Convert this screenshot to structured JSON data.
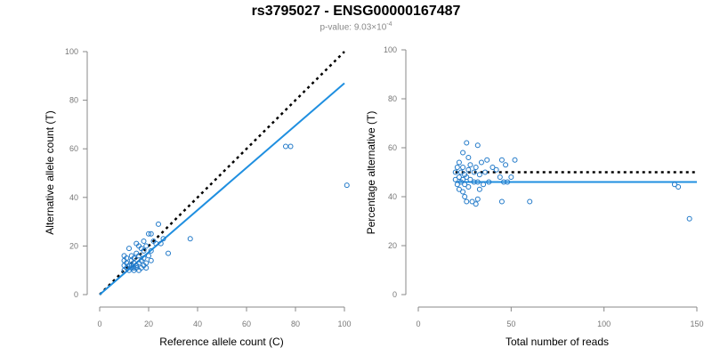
{
  "header": {
    "title": "rs3795027 - ENSG00000167487",
    "pvalue_prefix": "p-value: 9.03×10",
    "pvalue_exponent": "-4"
  },
  "colors": {
    "points": "#1f78c8",
    "fit_line": "#1f8fe0",
    "reference_line": "#000000",
    "axis": "#888888"
  },
  "chart_data": [
    {
      "type": "scatter",
      "title": "",
      "xlabel": "Reference allele count (C)",
      "ylabel": "Alternative allele count (T)",
      "xlim": [
        0,
        100
      ],
      "ylim": [
        0,
        100
      ],
      "xticks": [
        0,
        20,
        40,
        60,
        80,
        100
      ],
      "yticks": [
        0,
        20,
        40,
        60,
        80,
        100
      ],
      "reference_line": {
        "style": "dotted",
        "x": [
          0,
          100
        ],
        "y": [
          0,
          100
        ]
      },
      "fit_line": {
        "style": "solid",
        "x": [
          0,
          100
        ],
        "y": [
          0,
          87
        ]
      },
      "points": [
        [
          10,
          10
        ],
        [
          10,
          12
        ],
        [
          10,
          14
        ],
        [
          10,
          16
        ],
        [
          11,
          11
        ],
        [
          11,
          13
        ],
        [
          11,
          15
        ],
        [
          12,
          10
        ],
        [
          12,
          12
        ],
        [
          12,
          19
        ],
        [
          13,
          11
        ],
        [
          13,
          12
        ],
        [
          13,
          14
        ],
        [
          13,
          16
        ],
        [
          14,
          10
        ],
        [
          14,
          11
        ],
        [
          14,
          13
        ],
        [
          14,
          15
        ],
        [
          15,
          11
        ],
        [
          15,
          12
        ],
        [
          15,
          17
        ],
        [
          15,
          21
        ],
        [
          16,
          10
        ],
        [
          16,
          13
        ],
        [
          16,
          16
        ],
        [
          16,
          20
        ],
        [
          17,
          11
        ],
        [
          17,
          14
        ],
        [
          17,
          19
        ],
        [
          18,
          12
        ],
        [
          18,
          15
        ],
        [
          18,
          18
        ],
        [
          18,
          22
        ],
        [
          19,
          11
        ],
        [
          19,
          13
        ],
        [
          19,
          20
        ],
        [
          20,
          16
        ],
        [
          20,
          25
        ],
        [
          21,
          14
        ],
        [
          21,
          18
        ],
        [
          21,
          25
        ],
        [
          22,
          22
        ],
        [
          23,
          21
        ],
        [
          24,
          29
        ],
        [
          25,
          21
        ],
        [
          26,
          23
        ],
        [
          28,
          17
        ],
        [
          37,
          23
        ],
        [
          76,
          61
        ],
        [
          78,
          61
        ],
        [
          101,
          45
        ]
      ]
    },
    {
      "type": "scatter",
      "title": "",
      "xlabel": "Total number of reads",
      "ylabel": "Percentage alternative (T)",
      "xlim": [
        0,
        150
      ],
      "ylim": [
        0,
        100
      ],
      "xticks": [
        0,
        50,
        100,
        150
      ],
      "yticks": [
        0,
        20,
        40,
        60,
        80,
        100
      ],
      "reference_line": {
        "style": "dotted",
        "x": [
          20,
          150
        ],
        "y": [
          50,
          50
        ]
      },
      "fit_line": {
        "style": "solid",
        "x": [
          20,
          150
        ],
        "y": [
          46,
          46
        ]
      },
      "points": [
        [
          20,
          47
        ],
        [
          20,
          50
        ],
        [
          21,
          45
        ],
        [
          21,
          52
        ],
        [
          22,
          43
        ],
        [
          22,
          48
        ],
        [
          22,
          54
        ],
        [
          23,
          46
        ],
        [
          23,
          50
        ],
        [
          24,
          42
        ],
        [
          24,
          47
        ],
        [
          24,
          52
        ],
        [
          24,
          58
        ],
        [
          25,
          40
        ],
        [
          25,
          45
        ],
        [
          25,
          49
        ],
        [
          26,
          38
        ],
        [
          26,
          48
        ],
        [
          26,
          62
        ],
        [
          27,
          44
        ],
        [
          27,
          51
        ],
        [
          27,
          56
        ],
        [
          28,
          47
        ],
        [
          28,
          53
        ],
        [
          29,
          38
        ],
        [
          30,
          46
        ],
        [
          30,
          50
        ],
        [
          31,
          37
        ],
        [
          31,
          52
        ],
        [
          32,
          39
        ],
        [
          32,
          46
        ],
        [
          32,
          61
        ],
        [
          33,
          43
        ],
        [
          33,
          49
        ],
        [
          34,
          54
        ],
        [
          35,
          45
        ],
        [
          36,
          50
        ],
        [
          37,
          55
        ],
        [
          38,
          46
        ],
        [
          40,
          52
        ],
        [
          42,
          51
        ],
        [
          44,
          48
        ],
        [
          45,
          38
        ],
        [
          45,
          55
        ],
        [
          46,
          46
        ],
        [
          47,
          53
        ],
        [
          48,
          46
        ],
        [
          50,
          48
        ],
        [
          52,
          55
        ],
        [
          60,
          38
        ],
        [
          138,
          45
        ],
        [
          140,
          44
        ],
        [
          146,
          31
        ]
      ]
    }
  ]
}
